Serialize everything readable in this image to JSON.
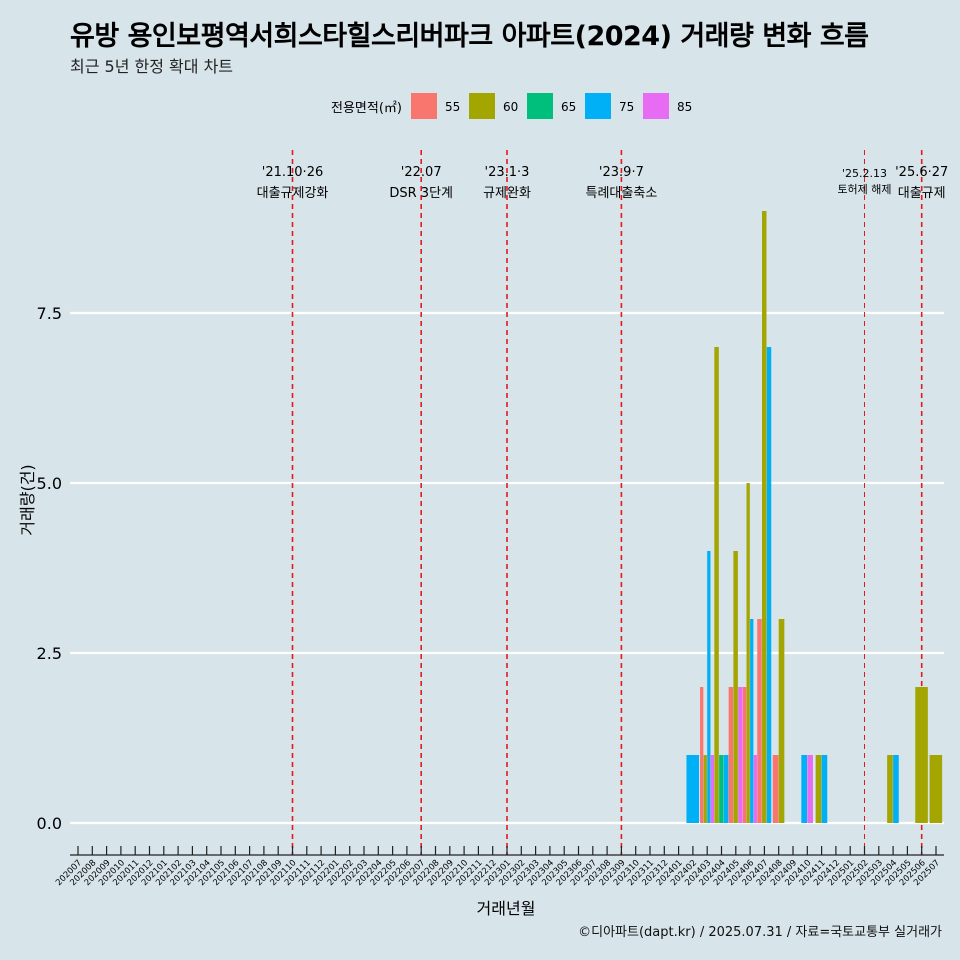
{
  "title": "유방 용인보평역서희스타힐스리버파크 아파트(2024) 거래량 변화 흐름",
  "subtitle": "최근 5년 한정 확대 차트",
  "caption": "©디아파트(dapt.kr) / 2025.07.31 / 자료=국토교통부 실거래가",
  "colors": {
    "background": "#d7e4ea",
    "grid": "#ffffff",
    "event_line": "#e41a1c"
  },
  "chart_data": {
    "type": "bar",
    "title": "유방 용인보평역서희스타힐스리버파크 아파트(2024) 거래량 변화 흐름",
    "subtitle": "최근 5년 한정 확대 차트",
    "xlabel": "거래년월",
    "ylabel": "거래량(건)",
    "legend_title": "전용면적(㎡)",
    "legend_position": "top",
    "ylim": [
      0,
      9
    ],
    "yticks": [
      0,
      2.5,
      5,
      7.5
    ],
    "ytick_labels": [
      "0.0",
      "2.5",
      "5.0",
      "7.5"
    ],
    "grid": true,
    "categories": [
      "202007",
      "202008",
      "202009",
      "202010",
      "202011",
      "202012",
      "202101",
      "202102",
      "202103",
      "202104",
      "202105",
      "202106",
      "202107",
      "202108",
      "202109",
      "202110",
      "202111",
      "202112",
      "202201",
      "202202",
      "202203",
      "202204",
      "202205",
      "202206",
      "202207",
      "202208",
      "202209",
      "202210",
      "202211",
      "202212",
      "202301",
      "202302",
      "202303",
      "202304",
      "202305",
      "202306",
      "202307",
      "202308",
      "202309",
      "202310",
      "202311",
      "202312",
      "202401",
      "202402",
      "202403",
      "202404",
      "202405",
      "202406",
      "202407",
      "202408",
      "202409",
      "202410",
      "202411",
      "202412",
      "202501",
      "202502",
      "202503",
      "202504",
      "202505",
      "202506",
      "202507"
    ],
    "series": [
      {
        "name": "55",
        "color": "#f8766d",
        "values": {
          "202403": 2,
          "202405": 2,
          "202406": 2,
          "202407": 3,
          "202408": 1
        }
      },
      {
        "name": "60",
        "color": "#a3a500",
        "values": {
          "202403": 1,
          "202404": 7,
          "202405": 4,
          "202406": 5,
          "202407": 9,
          "202408": 3,
          "202411": 1,
          "202504": 1,
          "202506": 2,
          "202507": 1
        }
      },
      {
        "name": "65",
        "color": "#00bf7d",
        "values": {
          "202404": 1
        }
      },
      {
        "name": "75",
        "color": "#00b0f6",
        "values": {
          "202402": 1,
          "202403": 4,
          "202404": 1,
          "202406": 3,
          "202407": 7,
          "202410": 1,
          "202411": 1,
          "202504": 1
        }
      },
      {
        "name": "85",
        "color": "#e76bf3",
        "values": {
          "202403": 1,
          "202405": 2,
          "202406": 1,
          "202410": 1
        }
      }
    ],
    "annotations": [
      {
        "month": "202110",
        "date": "'21.10·26",
        "label": "대출규제강화"
      },
      {
        "month": "202207",
        "date": "'22.07",
        "label": "DSR 3단계"
      },
      {
        "month": "202301",
        "date": "'23.1·3",
        "label": "규제완화"
      },
      {
        "month": "202309",
        "date": "'23.9·7",
        "label": "특례대출축소"
      },
      {
        "month": "202502",
        "date": "'25.2.13",
        "label": "토허제 해제"
      },
      {
        "month": "202506",
        "date": "'25.6·27",
        "label": "대출규제"
      }
    ]
  }
}
